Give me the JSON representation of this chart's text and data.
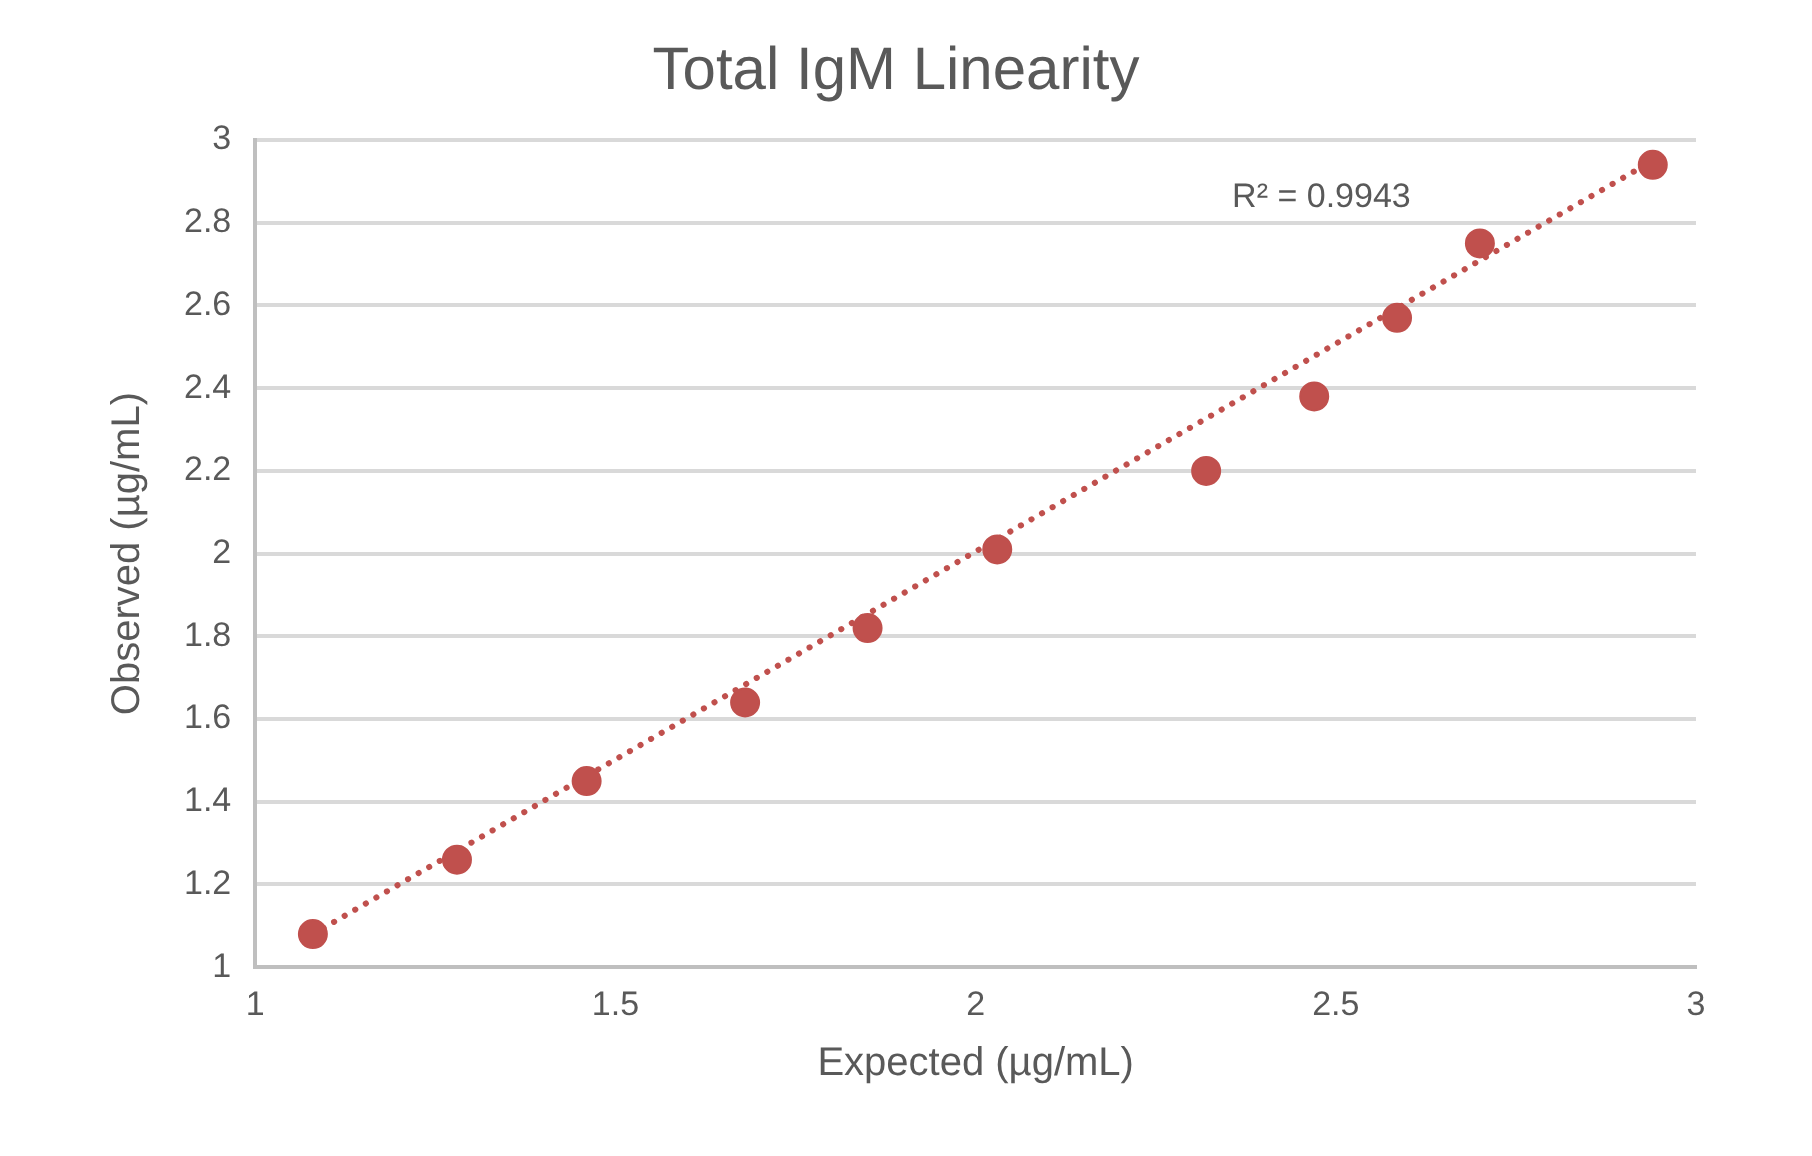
{
  "chart_data": {
    "type": "scatter",
    "title": "Total IgM Linearity",
    "xlabel": "Expected (µg/mL)",
    "ylabel": "Observed (µg/mL)",
    "xlim": [
      1,
      3
    ],
    "xticks": [
      1,
      1.5,
      2,
      2.5,
      3
    ],
    "ylim": [
      1,
      3
    ],
    "yticks": [
      1,
      1.2,
      1.4,
      1.6,
      1.8,
      2,
      2.2,
      2.4,
      2.6,
      2.8,
      3
    ],
    "grid": "y",
    "legend": false,
    "marker": "circle",
    "series": [
      {
        "type": "scatter",
        "color": "#c0504d",
        "x": [
          1.08,
          1.28,
          1.46,
          1.68,
          1.85,
          2.03,
          2.32,
          2.47,
          2.585,
          2.7,
          2.94
        ],
        "values": [
          1.08,
          1.26,
          1.45,
          1.64,
          1.82,
          2.01,
          2.2,
          2.38,
          2.57,
          2.75,
          2.94
        ]
      },
      {
        "type": "line",
        "color": "#c0504d",
        "line_style": "dotted",
        "marker": "none",
        "x": [
          1.08,
          2.94
        ],
        "values": [
          1.08,
          2.95
        ]
      }
    ],
    "annotations": [
      "R² = 0.9943"
    ]
  }
}
